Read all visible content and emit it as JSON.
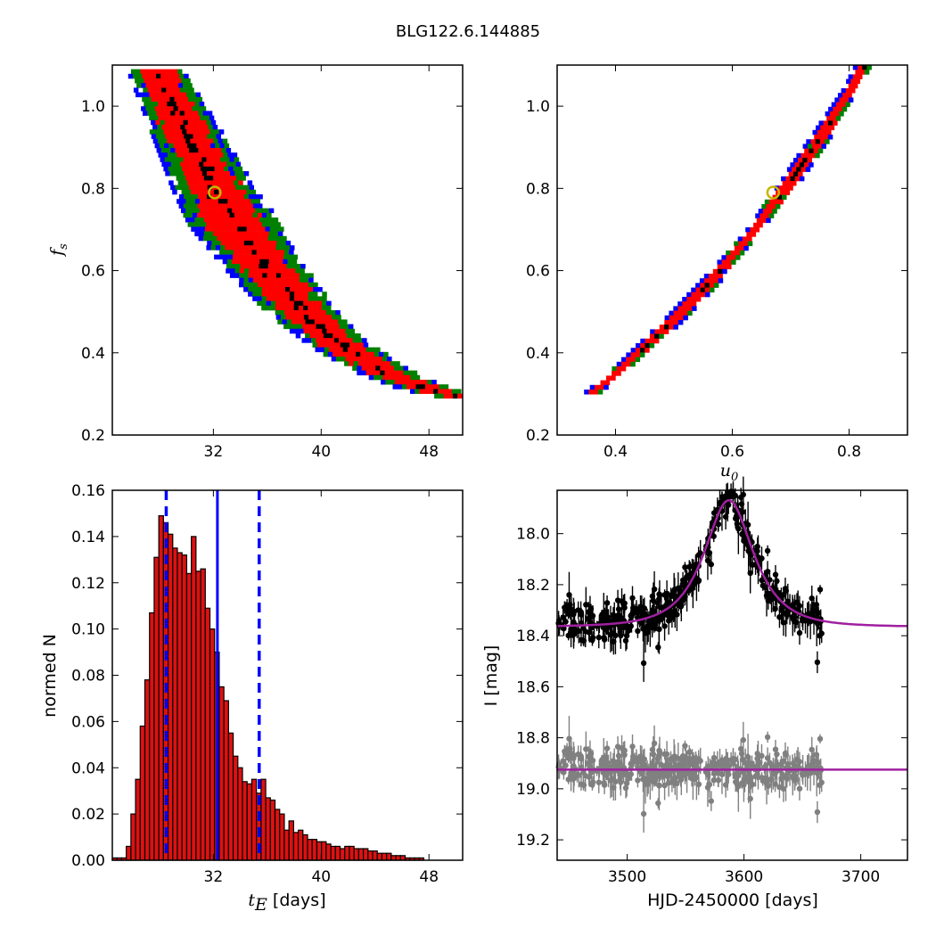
{
  "figure": {
    "title": "BLG122.6.144885"
  },
  "colors": {
    "sigma3": "#0000ff",
    "sigma2": "#008000",
    "sigma1": "#ff0000",
    "core": "#000000",
    "marker_edge": "#c8b400",
    "hist_fill": "#dd1111",
    "hist_edge": "#000000",
    "percentile_line": "#0000ff",
    "model": "#a020a0",
    "residual": "#808080"
  },
  "chart_data": [
    {
      "panel": "fs-vs-tE",
      "type": "heatmap",
      "xlabel": "",
      "ylabel": "f_s",
      "ylabel_main": "f",
      "ylabel_sub": "s",
      "xlim": [
        24.5,
        50.5
      ],
      "ylim": [
        0.2,
        1.1
      ],
      "xticks": [
        32,
        40,
        48
      ],
      "yticks": [
        0.2,
        0.4,
        0.6,
        0.8,
        1.0
      ],
      "ytick_labels": [
        "0.2",
        "0.4",
        "0.6",
        "0.8",
        "1.0"
      ],
      "levels": [
        "3-sigma",
        "2-sigma",
        "1-sigma",
        "core"
      ],
      "best_fit": {
        "x": 32.1,
        "y": 0.79
      },
      "ridge": [
        [
          27.6,
          1.09
        ],
        [
          29.0,
          1.0
        ],
        [
          30.5,
          0.9
        ],
        [
          32.0,
          0.8
        ],
        [
          33.8,
          0.7
        ],
        [
          36.0,
          0.6
        ],
        [
          38.6,
          0.5
        ],
        [
          41.5,
          0.42
        ],
        [
          44.5,
          0.36
        ],
        [
          47.5,
          0.32
        ],
        [
          50.0,
          0.3
        ]
      ]
    },
    {
      "panel": "fs-vs-u0",
      "type": "heatmap",
      "xlabel": "u_0",
      "xlabel_main": "u",
      "xlabel_sub": "0",
      "ylabel": "",
      "xlim": [
        0.3,
        0.9
      ],
      "ylim": [
        0.2,
        1.1
      ],
      "xticks": [
        0.4,
        0.6,
        0.8
      ],
      "xtick_labels": [
        "0.4",
        "0.6",
        "0.8"
      ],
      "yticks": [
        0.2,
        0.4,
        0.6,
        0.8,
        1.0
      ],
      "ytick_labels": [
        "0.2",
        "0.4",
        "0.6",
        "0.8",
        "1.0"
      ],
      "levels": [
        "3-sigma",
        "2-sigma",
        "1-sigma",
        "core"
      ],
      "best_fit": {
        "x": 0.67,
        "y": 0.79
      },
      "ridge": [
        [
          0.35,
          0.3
        ],
        [
          0.4,
          0.36
        ],
        [
          0.45,
          0.425
        ],
        [
          0.5,
          0.49
        ],
        [
          0.55,
          0.565
        ],
        [
          0.6,
          0.645
        ],
        [
          0.65,
          0.735
        ],
        [
          0.7,
          0.83
        ],
        [
          0.75,
          0.935
        ],
        [
          0.8,
          1.05
        ],
        [
          0.82,
          1.1
        ]
      ]
    },
    {
      "panel": "tE-histogram",
      "type": "bar",
      "xlabel_main": "t",
      "xlabel_sub": "E",
      "xlabel_unit": " [days]",
      "ylabel": "normed N",
      "xlim": [
        24.5,
        50.5
      ],
      "ylim": [
        0.0,
        0.16
      ],
      "xticks": [
        32,
        40,
        48
      ],
      "yticks": [
        0.0,
        0.02,
        0.04,
        0.06,
        0.08,
        0.1,
        0.12,
        0.14,
        0.16
      ],
      "ytick_labels": [
        "0.00",
        "0.02",
        "0.04",
        "0.06",
        "0.08",
        "0.10",
        "0.12",
        "0.14",
        "0.16"
      ],
      "bin_start": 24.5,
      "bin_width": 0.345,
      "values": [
        0.001,
        0.001,
        0.001,
        0.006,
        0.02,
        0.035,
        0.058,
        0.078,
        0.107,
        0.131,
        0.149,
        0.146,
        0.141,
        0.135,
        0.133,
        0.132,
        0.124,
        0.14,
        0.125,
        0.126,
        0.109,
        0.1,
        0.09,
        0.075,
        0.069,
        0.055,
        0.045,
        0.04,
        0.034,
        0.033,
        0.035,
        0.029,
        0.035,
        0.027,
        0.026,
        0.022,
        0.02,
        0.013,
        0.017,
        0.012,
        0.013,
        0.011,
        0.009,
        0.009,
        0.008,
        0.008,
        0.007,
        0.006,
        0.006,
        0.005,
        0.006,
        0.006,
        0.005,
        0.005,
        0.005,
        0.004,
        0.004,
        0.003,
        0.003,
        0.003,
        0.002,
        0.002,
        0.002,
        0.001,
        0.001,
        0.001,
        0.001,
        0.0,
        0.0,
        0.0,
        0.0,
        0.0,
        0.0,
        0.0,
        0.0
      ],
      "median": 32.3,
      "percentile_lo": 28.5,
      "percentile_hi": 35.4
    },
    {
      "panel": "lightcurve",
      "type": "scatter",
      "xlabel": "HJD-2450000 [days]",
      "ylabel": "I [mag]",
      "xlim": [
        3440,
        3740
      ],
      "ylim": [
        19.28,
        17.83
      ],
      "xticks": [
        3500,
        3600,
        3700
      ],
      "yticks": [
        18.0,
        18.2,
        18.4,
        18.6,
        18.8,
        19.0,
        19.2
      ],
      "ytick_labels": [
        "18.0",
        "18.2",
        "18.4",
        "18.6",
        "18.8",
        "19.0",
        "19.2"
      ],
      "model": {
        "t0": 3587,
        "tE": 32.1,
        "u0": 0.67,
        "fs": 0.79,
        "baseline": 18.365
      },
      "residual_baseline": 18.925,
      "data_range": [
        3440,
        3667
      ],
      "n_points": 420
    }
  ]
}
